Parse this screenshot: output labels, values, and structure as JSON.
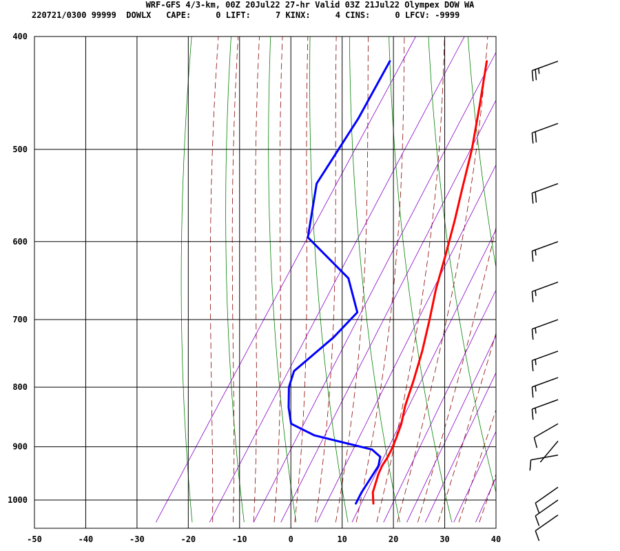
{
  "header": {
    "title": "WRF-GFS 4/3-km, 00Z 20Jul22 27-hr Valid 03Z 21Jul22 Olympex DOW WA",
    "subtitle": "220721/0300 99999  DOWLX   CAPE:     0 LIFT:     7 KINX:     4 CINS:     0 LFCV: -9999"
  },
  "chart_data": {
    "type": "line",
    "title": "WRF-GFS 4/3-km, 00Z 20Jul22 27-hr Valid 03Z 21Jul22 Olympex DOW WA",
    "subtitle": "220721/0300 99999  DOWLX   CAPE:     0 LIFT:     7 KINX:     4 CINS:     0 LFCV: -9999",
    "xlabel": "",
    "ylabel": "",
    "x_ticks": [
      -50,
      -40,
      -30,
      -20,
      -10,
      0,
      10,
      20,
      30,
      40
    ],
    "pressure_ticks": [
      400,
      500,
      600,
      700,
      800,
      900,
      1000
    ],
    "xlim": [
      -50,
      40
    ],
    "ylim": [
      1045,
      400
    ],
    "yscale": "log",
    "grid": true,
    "series": [
      {
        "color": "#ff0000",
        "points": [
          [
            -20.1,
            420
          ],
          [
            -16,
            458
          ],
          [
            -12,
            500
          ],
          [
            -9,
            540
          ],
          [
            -6.5,
            575
          ],
          [
            -4,
            615
          ],
          [
            -1.5,
            660
          ],
          [
            1,
            700
          ],
          [
            3.5,
            745
          ],
          [
            5.5,
            790
          ],
          [
            7,
            830
          ],
          [
            8.5,
            860
          ],
          [
            9.3,
            885
          ],
          [
            9.8,
            905
          ],
          [
            10,
            920
          ],
          [
            10,
            935
          ],
          [
            10.3,
            950
          ],
          [
            11.5,
            985
          ],
          [
            13,
            1007
          ]
        ]
      },
      {
        "color": "#0000ff",
        "points": [
          [
            -39,
            420
          ],
          [
            -38,
            470
          ],
          [
            -38,
            500
          ],
          [
            -38,
            535
          ],
          [
            -33,
            595
          ],
          [
            -20,
            645
          ],
          [
            -14,
            690
          ],
          [
            -15.5,
            725
          ],
          [
            -19,
            775
          ],
          [
            -18,
            800
          ],
          [
            -15.5,
            833
          ],
          [
            -13,
            860
          ],
          [
            -7,
            880
          ],
          [
            6,
            905
          ],
          [
            8.5,
            918
          ],
          [
            9.3,
            935
          ],
          [
            9.3,
            960
          ],
          [
            9.3,
            985
          ],
          [
            9.6,
            1007
          ]
        ]
      }
    ],
    "wind_barbs": [
      {
        "p": 420,
        "dir": 250,
        "spd": 25
      },
      {
        "p": 475,
        "dir": 250,
        "spd": 20
      },
      {
        "p": 535,
        "dir": 250,
        "spd": 20
      },
      {
        "p": 600,
        "dir": 250,
        "spd": 15
      },
      {
        "p": 650,
        "dir": 250,
        "spd": 15
      },
      {
        "p": 700,
        "dir": 250,
        "spd": 15
      },
      {
        "p": 745,
        "dir": 250,
        "spd": 15
      },
      {
        "p": 785,
        "dir": 250,
        "spd": 15
      },
      {
        "p": 820,
        "dir": 250,
        "spd": 15
      },
      {
        "p": 860,
        "dir": 240,
        "spd": 10
      },
      {
        "p": 890,
        "dir": 220,
        "spd": 0
      },
      {
        "p": 915,
        "dir": 260,
        "spd": 10
      },
      {
        "p": 975,
        "dir": 235,
        "spd": 10
      },
      {
        "p": 1000,
        "dir": 235,
        "spd": 10
      },
      {
        "p": 1030,
        "dir": 235,
        "spd": 10
      }
    ],
    "colors": {
      "isotherm": "#000000",
      "dry_adiabat": "#008000",
      "moist_adiabat": "#8b0000",
      "mixing_ratio": "#8b00c8",
      "temperature": "#ff0000",
      "dewpoint": "#0000ff"
    }
  }
}
